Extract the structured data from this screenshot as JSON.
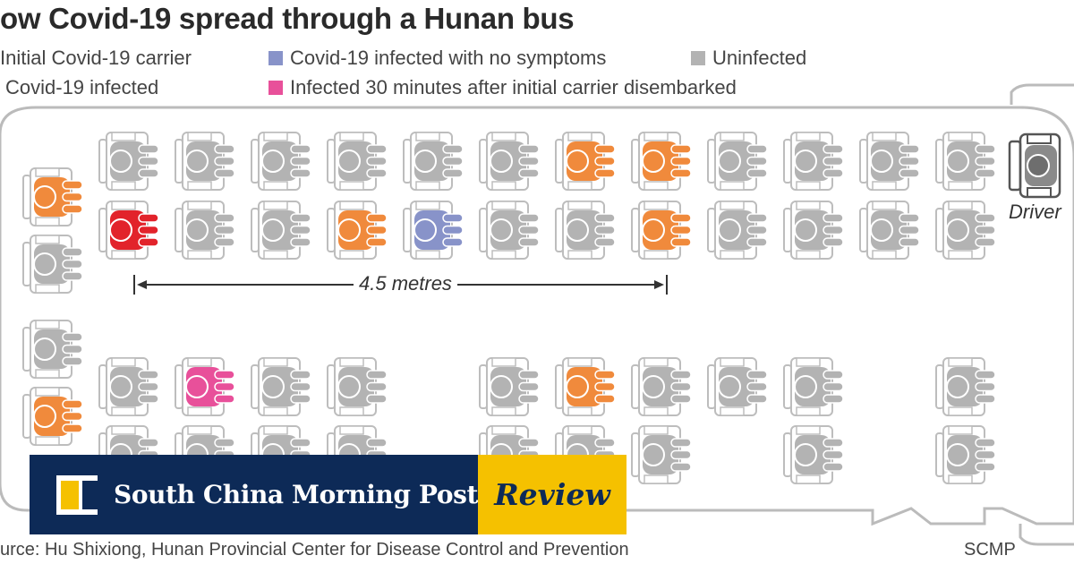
{
  "title": "ow Covid-19 spread through a Hunan bus",
  "legend": [
    {
      "label": "Initial Covid-19 carrier",
      "color": "#e2232b"
    },
    {
      "label": "Covid-19 infected with no symptoms",
      "color": "#8893c9"
    },
    {
      "label": "Uninfected",
      "color": "#b3b3b3"
    },
    {
      "label": "Covid-19 infected",
      "color": "#f08a3c"
    },
    {
      "label": "Infected 30 minutes after initial carrier disembarked",
      "color": "#e8509a"
    }
  ],
  "distance_label": "4.5 metres",
  "driver_label": "Driver",
  "source": "urce: Hu Shixiong, Hunan Provincial Center for Disease Control and Prevention",
  "credit": "SCMP",
  "status_colors": {
    "uninfected": "#b3b3b3",
    "infected": "#f08a3c",
    "initial": "#e2232b",
    "asymptomatic": "#8893c9",
    "late": "#e8509a"
  },
  "seats": {
    "back_row": [
      "infected",
      "uninfected",
      "uninfected",
      "infected"
    ],
    "left_row_1": [
      "uninfected",
      "uninfected",
      "uninfected",
      "uninfected",
      "uninfected",
      "uninfected",
      "infected",
      "infected",
      "uninfected",
      "uninfected",
      "uninfected",
      "uninfected"
    ],
    "left_row_2": [
      "initial",
      "uninfected",
      "uninfected",
      "infected",
      "asymptomatic",
      "uninfected",
      "uninfected",
      "infected",
      "uninfected",
      "uninfected",
      "uninfected",
      "uninfected"
    ],
    "right_row_1": [
      "uninfected",
      "late",
      "uninfected",
      "uninfected",
      "",
      "uninfected",
      "infected",
      "uninfected",
      "uninfected",
      "uninfected",
      "",
      "uninfected"
    ],
    "right_row_2": [
      "uninfected",
      "uninfected",
      "uninfected",
      "uninfected",
      "",
      "uninfected",
      "uninfected",
      "uninfected",
      "",
      "uninfected",
      "",
      "uninfected"
    ]
  },
  "brand": {
    "name": "South China Morning Post",
    "section": "Review"
  }
}
